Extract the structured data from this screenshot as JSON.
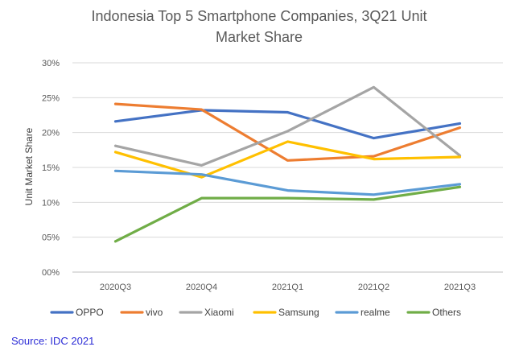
{
  "chart_data": {
    "type": "line",
    "title_lines": [
      "Indonesia Top 5 Smartphone Companies, 3Q21 Unit",
      "Market Share"
    ],
    "ylabel": "Unit Market Share",
    "xlabel": "",
    "categories": [
      "2020Q3",
      "2020Q4",
      "2021Q1",
      "2021Q2",
      "2021Q3"
    ],
    "y_ticks": [
      0,
      5,
      10,
      15,
      20,
      25,
      30
    ],
    "y_tick_labels": [
      "00%",
      "05%",
      "10%",
      "15%",
      "20%",
      "25%",
      "30%"
    ],
    "ylim": [
      0,
      30
    ],
    "grid": true,
    "legend_position": "bottom",
    "series": [
      {
        "name": "OPPO",
        "color": "#4472C4",
        "values": [
          21.6,
          23.2,
          22.9,
          19.2,
          21.3
        ]
      },
      {
        "name": "vivo",
        "color": "#ED7D31",
        "values": [
          24.1,
          23.3,
          16.0,
          16.6,
          20.7
        ]
      },
      {
        "name": "Xiaomi",
        "color": "#A5A5A5",
        "values": [
          18.1,
          15.3,
          20.2,
          26.5,
          16.7
        ]
      },
      {
        "name": "Samsung",
        "color": "#FFC000",
        "values": [
          17.2,
          13.6,
          18.7,
          16.2,
          16.5
        ]
      },
      {
        "name": "realme",
        "color": "#5B9BD5",
        "values": [
          14.5,
          14.0,
          11.7,
          11.1,
          12.6
        ]
      },
      {
        "name": "Others",
        "color": "#70AD47",
        "values": [
          4.4,
          10.6,
          10.6,
          10.4,
          12.2
        ]
      }
    ]
  },
  "source": "Source: IDC 2021"
}
